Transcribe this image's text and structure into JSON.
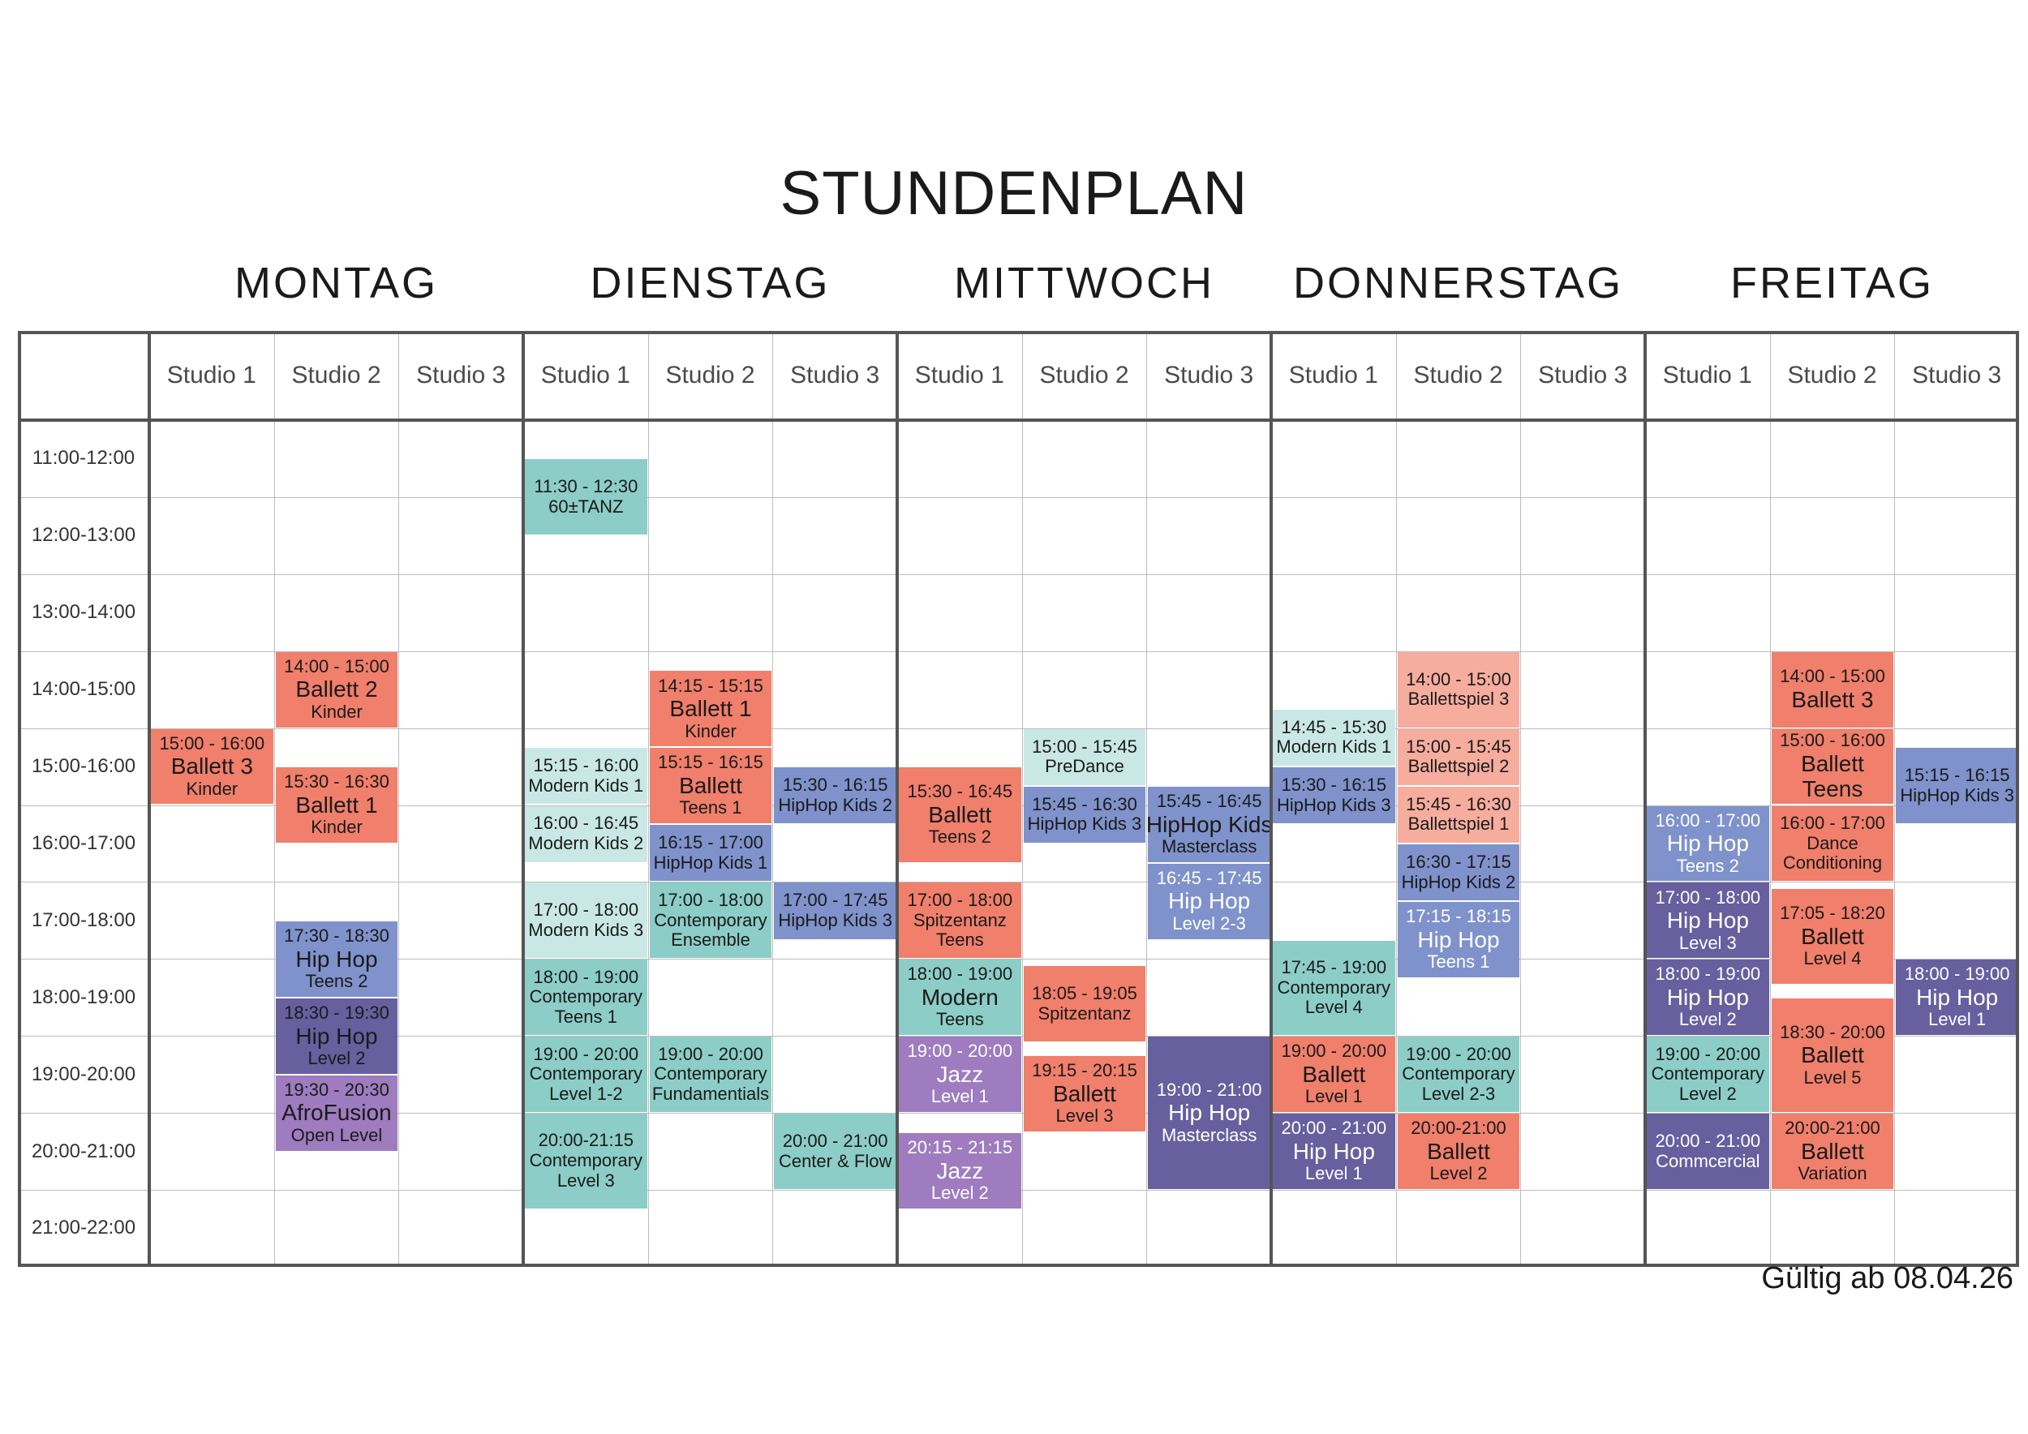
{
  "title": "STUNDENPLAN",
  "valid_from": "Gültig ab 08.04.26",
  "colors": {
    "salmon": "#f07f6b",
    "salmon_light": "#f6ad9e",
    "teal": "#8ccdc7",
    "teal_light": "#c9e8e5",
    "blue": "#7f92cb",
    "indigo": "#675f9e",
    "purple": "#9e7cbf",
    "grid_line": "#bdbdbd",
    "grid_border": "#555555"
  },
  "days": [
    "MONTAG",
    "DIENSTAG",
    "MITTWOCH",
    "DONNERSTAG",
    "FREITAG"
  ],
  "studios": [
    "Studio 1",
    "Studio 2",
    "Studio 3"
  ],
  "time_slots": [
    "11:00-12:00",
    "12:00-13:00",
    "13:00-14:00",
    "14:00-15:00",
    "15:00-16:00",
    "16:00-17:00",
    "17:00-18:00",
    "18:00-19:00",
    "19:00-20:00",
    "20:00-21:00",
    "21:00-22:00"
  ],
  "classes": [
    {
      "day": 0,
      "studio": 0,
      "start": "15:00",
      "end": "16:00",
      "time": "15:00 - 16:00",
      "name": "Ballett 3",
      "sub": "Kinder",
      "color": "salmon"
    },
    {
      "day": 0,
      "studio": 1,
      "start": "14:00",
      "end": "15:00",
      "time": "14:00 - 15:00",
      "name": "Ballett 2",
      "sub": "Kinder",
      "color": "salmon"
    },
    {
      "day": 0,
      "studio": 1,
      "start": "15:30",
      "end": "16:30",
      "time": "15:30 - 16:30",
      "name": "Ballett 1",
      "sub": "Kinder",
      "color": "salmon"
    },
    {
      "day": 0,
      "studio": 1,
      "start": "17:30",
      "end": "18:30",
      "time": "17:30 - 18:30",
      "name": "Hip Hop",
      "sub": "Teens 2",
      "color": "blue"
    },
    {
      "day": 0,
      "studio": 1,
      "start": "18:30",
      "end": "19:30",
      "time": "18:30 - 19:30",
      "name": "Hip Hop",
      "sub": "Level 2",
      "color": "indigo"
    },
    {
      "day": 0,
      "studio": 1,
      "start": "19:30",
      "end": "20:30",
      "time": "19:30 - 20:30",
      "name": "AfroFusion",
      "sub": "Open Level",
      "color": "purple"
    },
    {
      "day": 1,
      "studio": 0,
      "start": "11:30",
      "end": "12:30",
      "time": "11:30 - 12:30",
      "name": "60±TANZ",
      "sub": "",
      "color": "teal",
      "compact": true
    },
    {
      "day": 1,
      "studio": 0,
      "start": "15:15",
      "end": "16:00",
      "time": "15:15 - 16:00",
      "name": "Modern Kids 1",
      "sub": "",
      "color": "teal_light",
      "compact": true
    },
    {
      "day": 1,
      "studio": 0,
      "start": "16:00",
      "end": "16:45",
      "time": "16:00 - 16:45",
      "name": "Modern Kids 2",
      "sub": "",
      "color": "teal_light",
      "compact": true
    },
    {
      "day": 1,
      "studio": 0,
      "start": "17:00",
      "end": "18:00",
      "time": "17:00 - 18:00",
      "name": "Modern Kids 3",
      "sub": "",
      "color": "teal_light",
      "compact": true
    },
    {
      "day": 1,
      "studio": 0,
      "start": "18:00",
      "end": "19:00",
      "time": "18:00 - 19:00",
      "name": "Contemporary",
      "sub": "Teens 1",
      "color": "teal",
      "compact": true
    },
    {
      "day": 1,
      "studio": 0,
      "start": "19:00",
      "end": "20:00",
      "time": "19:00 - 20:00",
      "name": "Contemporary",
      "sub": "Level 1-2",
      "color": "teal",
      "compact": true
    },
    {
      "day": 1,
      "studio": 0,
      "start": "20:00",
      "end": "21:15",
      "time": "20:00-21:15",
      "name": "Contemporary",
      "sub": "Level 3",
      "color": "teal",
      "compact": true
    },
    {
      "day": 1,
      "studio": 1,
      "start": "14:15",
      "end": "15:15",
      "time": "14:15 - 15:15",
      "name": "Ballett 1",
      "sub": "Kinder",
      "color": "salmon"
    },
    {
      "day": 1,
      "studio": 1,
      "start": "15:15",
      "end": "16:15",
      "time": "15:15 - 16:15",
      "name": "Ballett",
      "sub": "Teens 1",
      "color": "salmon"
    },
    {
      "day": 1,
      "studio": 1,
      "start": "16:15",
      "end": "17:00",
      "time": "16:15 - 17:00",
      "name": "HipHop Kids 1",
      "sub": "",
      "color": "blue",
      "compact": true
    },
    {
      "day": 1,
      "studio": 1,
      "start": "17:00",
      "end": "18:00",
      "time": "17:00 - 18:00",
      "name": "Contemporary",
      "sub": "Ensemble",
      "color": "teal",
      "compact": true
    },
    {
      "day": 1,
      "studio": 1,
      "start": "19:00",
      "end": "20:00",
      "time": "19:00 - 20:00",
      "name": "Contemporary",
      "sub": "Fundamentials",
      "color": "teal",
      "compact": true
    },
    {
      "day": 1,
      "studio": 2,
      "start": "15:30",
      "end": "16:15",
      "time": "15:30 - 16:15",
      "name": "HipHop Kids 2",
      "sub": "",
      "color": "blue",
      "compact": true
    },
    {
      "day": 1,
      "studio": 2,
      "start": "17:00",
      "end": "17:45",
      "time": "17:00 - 17:45",
      "name": "HipHop Kids 3",
      "sub": "",
      "color": "blue",
      "compact": true
    },
    {
      "day": 1,
      "studio": 2,
      "start": "20:00",
      "end": "21:00",
      "time": "20:00 - 21:00",
      "name": "Center & Flow",
      "sub": "",
      "color": "teal",
      "compact": true
    },
    {
      "day": 2,
      "studio": 0,
      "start": "15:30",
      "end": "16:45",
      "time": "15:30 - 16:45",
      "name": "Ballett",
      "sub": "Teens 2",
      "color": "salmon"
    },
    {
      "day": 2,
      "studio": 0,
      "start": "17:00",
      "end": "18:00",
      "time": "17:00 - 18:00",
      "name": "Spitzentanz",
      "sub": "Teens",
      "color": "salmon",
      "compact": true
    },
    {
      "day": 2,
      "studio": 0,
      "start": "18:00",
      "end": "19:00",
      "time": "18:00 - 19:00",
      "name": "Modern",
      "sub": "Teens",
      "color": "teal"
    },
    {
      "day": 2,
      "studio": 0,
      "start": "19:00",
      "end": "20:00",
      "time": "19:00 - 20:00",
      "name": "Jazz",
      "sub": "Level 1",
      "color": "purple",
      "dark": true
    },
    {
      "day": 2,
      "studio": 0,
      "start": "20:15",
      "end": "21:15",
      "time": "20:15 - 21:15",
      "name": "Jazz",
      "sub": "Level 2",
      "color": "purple",
      "dark": true
    },
    {
      "day": 2,
      "studio": 1,
      "start": "15:00",
      "end": "15:45",
      "time": "15:00 - 15:45",
      "name": "PreDance",
      "sub": "",
      "color": "teal_light",
      "compact": true
    },
    {
      "day": 2,
      "studio": 1,
      "start": "15:45",
      "end": "16:30",
      "time": "15:45 - 16:30",
      "name": "HipHop Kids 3",
      "sub": "",
      "color": "blue",
      "compact": true
    },
    {
      "day": 2,
      "studio": 1,
      "start": "18:05",
      "end": "19:05",
      "time": "18:05 - 19:05",
      "name": "Spitzentanz",
      "sub": "",
      "color": "salmon",
      "compact": true
    },
    {
      "day": 2,
      "studio": 1,
      "start": "19:15",
      "end": "20:15",
      "time": "19:15 - 20:15",
      "name": "Ballett",
      "sub": "Level 3",
      "color": "salmon"
    },
    {
      "day": 2,
      "studio": 2,
      "start": "15:45",
      "end": "16:45",
      "time": "15:45 - 16:45",
      "name": "HipHop Kids",
      "sub": "Masterclass",
      "color": "blue"
    },
    {
      "day": 2,
      "studio": 2,
      "start": "16:45",
      "end": "17:45",
      "time": "16:45 - 17:45",
      "name": "Hip Hop",
      "sub": "Level 2-3",
      "color": "blue",
      "dark": true
    },
    {
      "day": 2,
      "studio": 2,
      "start": "19:00",
      "end": "21:00",
      "time": "19:00 - 21:00",
      "name": "Hip Hop",
      "sub": "Masterclass",
      "color": "indigo",
      "dark": true
    },
    {
      "day": 3,
      "studio": 0,
      "start": "14:45",
      "end": "15:30",
      "time": "14:45 - 15:30",
      "name": "Modern Kids 1",
      "sub": "",
      "color": "teal_light",
      "compact": true
    },
    {
      "day": 3,
      "studio": 0,
      "start": "15:30",
      "end": "16:15",
      "time": "15:30 - 16:15",
      "name": "HipHop Kids 3",
      "sub": "",
      "color": "blue",
      "compact": true
    },
    {
      "day": 3,
      "studio": 0,
      "start": "17:45",
      "end": "19:00",
      "time": "17:45 - 19:00",
      "name": "Contemporary",
      "sub": "Level 4",
      "color": "teal",
      "compact": true
    },
    {
      "day": 3,
      "studio": 0,
      "start": "19:00",
      "end": "20:00",
      "time": "19:00 - 20:00",
      "name": "Ballett",
      "sub": "Level 1",
      "color": "salmon"
    },
    {
      "day": 3,
      "studio": 0,
      "start": "20:00",
      "end": "21:00",
      "time": "20:00 - 21:00",
      "name": "Hip Hop",
      "sub": "Level 1",
      "color": "indigo",
      "dark": true
    },
    {
      "day": 3,
      "studio": 1,
      "start": "14:00",
      "end": "15:00",
      "time": "14:00 - 15:00",
      "name": "Ballettspiel 3",
      "sub": "",
      "color": "salmon_light",
      "compact": true
    },
    {
      "day": 3,
      "studio": 1,
      "start": "15:00",
      "end": "15:45",
      "time": "15:00 - 15:45",
      "name": "Ballettspiel 2",
      "sub": "",
      "color": "salmon_light",
      "compact": true
    },
    {
      "day": 3,
      "studio": 1,
      "start": "15:45",
      "end": "16:30",
      "time": "15:45 - 16:30",
      "name": "Ballettspiel 1",
      "sub": "",
      "color": "salmon_light",
      "compact": true
    },
    {
      "day": 3,
      "studio": 1,
      "start": "16:30",
      "end": "17:15",
      "time": "16:30 - 17:15",
      "name": "HipHop Kids 2",
      "sub": "",
      "color": "blue",
      "compact": true
    },
    {
      "day": 3,
      "studio": 1,
      "start": "17:15",
      "end": "18:15",
      "time": "17:15 - 18:15",
      "name": "Hip Hop",
      "sub": "Teens 1",
      "color": "blue",
      "dark": true
    },
    {
      "day": 3,
      "studio": 1,
      "start": "19:00",
      "end": "20:00",
      "time": "19:00 - 20:00",
      "name": "Contemporary",
      "sub": "Level 2-3",
      "color": "teal",
      "compact": true
    },
    {
      "day": 3,
      "studio": 1,
      "start": "20:00",
      "end": "21:00",
      "time": "20:00-21:00",
      "name": "Ballett",
      "sub": "Level 2",
      "color": "salmon"
    },
    {
      "day": 4,
      "studio": 0,
      "start": "16:00",
      "end": "17:00",
      "time": "16:00 - 17:00",
      "name": "Hip Hop",
      "sub": "Teens 2",
      "color": "blue",
      "dark": true
    },
    {
      "day": 4,
      "studio": 0,
      "start": "17:00",
      "end": "18:00",
      "time": "17:00 - 18:00",
      "name": "Hip Hop",
      "sub": "Level 3",
      "color": "indigo",
      "dark": true
    },
    {
      "day": 4,
      "studio": 0,
      "start": "18:00",
      "end": "19:00",
      "time": "18:00 - 19:00",
      "name": "Hip Hop",
      "sub": "Level 2",
      "color": "indigo",
      "dark": true
    },
    {
      "day": 4,
      "studio": 0,
      "start": "19:00",
      "end": "20:00",
      "time": "19:00 - 20:00",
      "name": "Contemporary",
      "sub": "Level 2",
      "color": "teal",
      "compact": true
    },
    {
      "day": 4,
      "studio": 0,
      "start": "20:00",
      "end": "21:00",
      "time": "20:00 - 21:00",
      "name": "Commcercial",
      "sub": "",
      "color": "indigo",
      "dark": true,
      "compact": true
    },
    {
      "day": 4,
      "studio": 1,
      "start": "14:00",
      "end": "15:00",
      "time": "14:00 - 15:00",
      "name": "Ballett 3",
      "sub": "",
      "color": "salmon"
    },
    {
      "day": 4,
      "studio": 1,
      "start": "15:00",
      "end": "16:00",
      "time": "15:00 - 16:00",
      "name": "Ballett",
      "sub": "Teens",
      "color": "salmon",
      "bigsub": true
    },
    {
      "day": 4,
      "studio": 1,
      "start": "16:00",
      "end": "17:00",
      "time": "16:00 - 17:00",
      "name": "Dance",
      "sub": "Conditioning",
      "color": "salmon",
      "compact": true
    },
    {
      "day": 4,
      "studio": 1,
      "start": "17:05",
      "end": "18:20",
      "time": "17:05 - 18:20",
      "name": "Ballett",
      "sub": "Level 4",
      "color": "salmon"
    },
    {
      "day": 4,
      "studio": 1,
      "start": "18:30",
      "end": "20:00",
      "time": "18:30 - 20:00",
      "name": "Ballett",
      "sub": "Level 5",
      "color": "salmon"
    },
    {
      "day": 4,
      "studio": 1,
      "start": "20:00",
      "end": "21:00",
      "time": "20:00-21:00",
      "name": "Ballett",
      "sub": "Variation",
      "color": "salmon"
    },
    {
      "day": 4,
      "studio": 2,
      "start": "15:15",
      "end": "16:15",
      "time": "15:15 - 16:15",
      "name": "HipHop Kids 3",
      "sub": "",
      "color": "blue",
      "compact": true
    },
    {
      "day": 4,
      "studio": 2,
      "start": "18:00",
      "end": "19:00",
      "time": "18:00 - 19:00",
      "name": "Hip Hop",
      "sub": "Level 1",
      "color": "indigo",
      "dark": true
    }
  ]
}
